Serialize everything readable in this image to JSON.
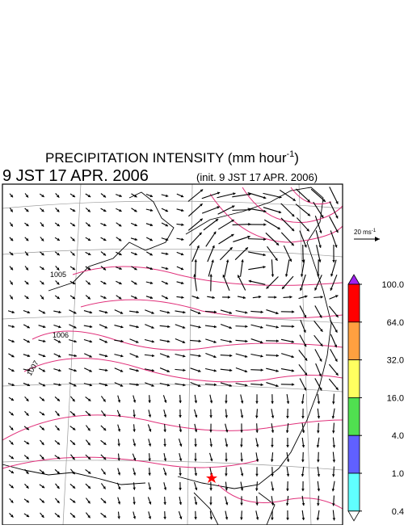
{
  "header": {
    "title": {
      "main": "PRECIPITATION INTENSITY (mm hour",
      "exponent": "-1",
      "close": ")"
    },
    "valid_time": "9 JST 17 APR. 2006",
    "init_time": "(init. 9 JST 17 APR. 2006)"
  },
  "vector_scale": {
    "label": "20 ms",
    "exponent": "-1"
  },
  "contour_labels": [
    "1005",
    "1006",
    "1007"
  ],
  "colorbar": {
    "levels": [
      {
        "value": 100,
        "label": "100.0"
      },
      {
        "value": 64,
        "label": "64.0"
      },
      {
        "value": 32,
        "label": "32.0"
      },
      {
        "value": 16,
        "label": "16.0"
      },
      {
        "value": 4,
        "label": "4.0"
      },
      {
        "value": 1,
        "label": "1.0"
      },
      {
        "value": 0.4,
        "label": "0.4"
      }
    ],
    "over_color": "#a020f0",
    "colors": [
      "#ff0000",
      "#ffa040",
      "#ffff60",
      "#50e050",
      "#6060ff",
      "#60ffff"
    ],
    "under_color": "#ffffff"
  }
}
